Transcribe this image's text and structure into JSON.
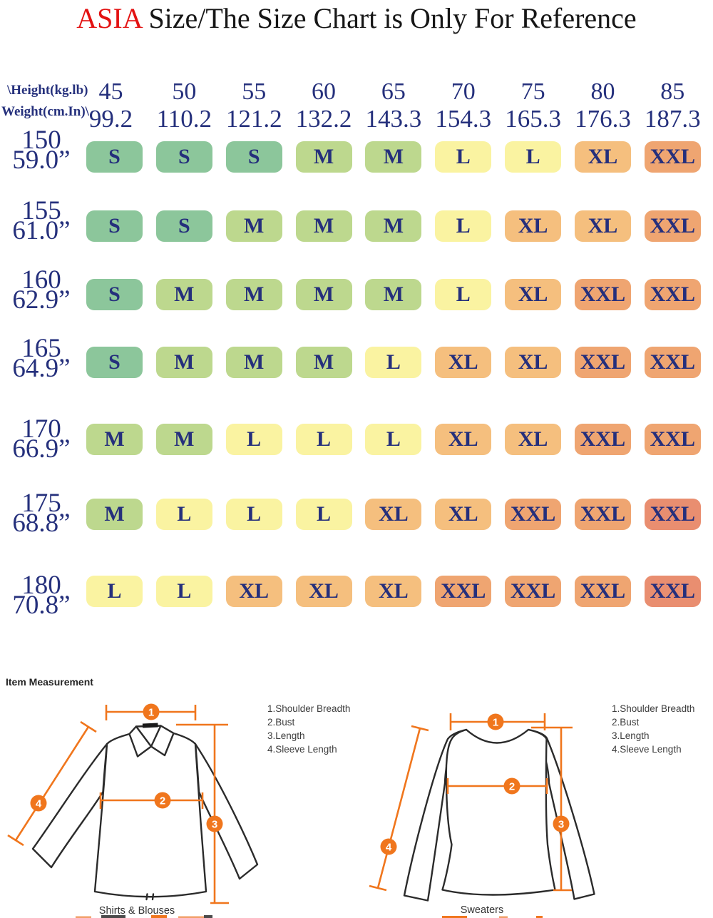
{
  "title": {
    "highlight": "ASIA",
    "rest": " Size/The Size Chart is Only For Reference"
  },
  "chart_data": {
    "type": "table",
    "title": "ASIA Size/The Size Chart is Only For Reference",
    "corner_label_top": "\\Height(kg.lb)",
    "corner_label_bottom": "Weight(cm.In)\\",
    "weight_kg": [
      "45",
      "50",
      "55",
      "60",
      "65",
      "70",
      "75",
      "80",
      "85"
    ],
    "weight_lb": [
      "99.2",
      "110.2",
      "121.2",
      "132.2",
      "143.3",
      "154.3",
      "165.3",
      "176.3",
      "187.3"
    ],
    "rows": [
      {
        "height_cm": "150",
        "height_in": "59.0”",
        "cells": [
          "S",
          "S",
          "S",
          "M",
          "M",
          "L",
          "L",
          "XL",
          "XXL"
        ]
      },
      {
        "height_cm": "155",
        "height_in": "61.0”",
        "cells": [
          "S",
          "S",
          "M",
          "M",
          "M",
          "L",
          "XL",
          "XL",
          "XXL"
        ]
      },
      {
        "height_cm": "160",
        "height_in": "62.9”",
        "cells": [
          "S",
          "M",
          "M",
          "M",
          "M",
          "L",
          "XL",
          "XXL",
          "XXL"
        ]
      },
      {
        "height_cm": "165",
        "height_in": "64.9”",
        "cells": [
          "S",
          "M",
          "M",
          "M",
          "L",
          "XL",
          "XL",
          "XXL",
          "XXL"
        ]
      },
      {
        "height_cm": "170",
        "height_in": "66.9”",
        "cells": [
          "M",
          "M",
          "L",
          "L",
          "L",
          "XL",
          "XL",
          "XXL",
          "XXL"
        ]
      },
      {
        "height_cm": "175",
        "height_in": "68.8”",
        "cells": [
          "M",
          "L",
          "L",
          "L",
          "XL",
          "XL",
          "XXL",
          "XXL",
          "XXL"
        ]
      },
      {
        "height_cm": "180",
        "height_in": "70.8”",
        "cells": [
          "L",
          "L",
          "XL",
          "XL",
          "XL",
          "XXL",
          "XXL",
          "XXL",
          "XXL"
        ]
      }
    ],
    "deep_cells": [
      [
        5,
        8
      ],
      [
        6,
        8
      ]
    ],
    "size_colors": {
      "S": "#8cc69b",
      "M": "#bdd88e",
      "L": "#faf3a1",
      "XL": "#f5bf7e",
      "XXL": "#efa571",
      "XXL_deep": "#e98e70"
    },
    "text_color": "#25307c"
  },
  "measurement": {
    "heading": "Item Measurement",
    "legend": [
      "1.Shoulder Breadth",
      "2.Bust",
      "3.Length",
      "4.Sleeve Length"
    ],
    "figures": [
      {
        "caption": "Shirts & Blouses",
        "markers": [
          "1",
          "2",
          "3",
          "4"
        ]
      },
      {
        "caption": "Sweaters",
        "markers": [
          "1",
          "2",
          "3",
          "4"
        ]
      }
    ],
    "accent_color": "#f0761d"
  }
}
